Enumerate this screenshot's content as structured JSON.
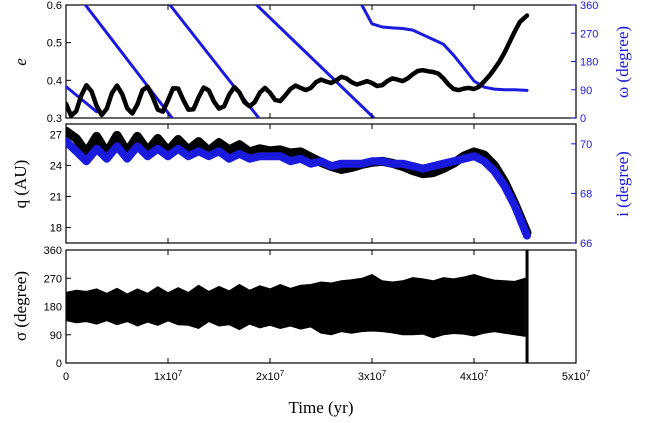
{
  "figure": {
    "xlabel": "Time (yr)"
  },
  "colors": {
    "primary": "#000000",
    "secondary": "#1a1adf"
  },
  "chart_data": [
    {
      "panel": "top",
      "type": "line",
      "xlabel": "",
      "xlim": [
        0,
        50000000
      ],
      "x_ticks": [
        "0",
        "1x10^7",
        "2x10^7",
        "3x10^7",
        "4x10^7",
        "5x10^7"
      ],
      "ylabel": "e",
      "ylim": [
        0.3,
        0.6
      ],
      "y_ticks": [
        "0.3",
        "0.4",
        "0.5",
        "0.6"
      ],
      "y2label": "ω (degree)",
      "y2lim": [
        0,
        360
      ],
      "y2_ticks": [
        "0",
        "90",
        "180",
        "270",
        "360"
      ],
      "series": [
        {
          "axis": "left",
          "color": "#000000",
          "x": [
            0,
            500000,
            1000000,
            1500000,
            2000000,
            2500000,
            3000000,
            3500000,
            4000000,
            4500000,
            5000000,
            5500000,
            6000000,
            6500000,
            7000000,
            7500000,
            8000000,
            8500000,
            9000000,
            9500000,
            10000000,
            10500000,
            11000000,
            11500000,
            12000000,
            12500000,
            13000000,
            13500000,
            14000000,
            14500000,
            15000000,
            15500000,
            16000000,
            16500000,
            17000000,
            17500000,
            18000000,
            18500000,
            19000000,
            19500000,
            20000000,
            20500000,
            21000000,
            21500000,
            22000000,
            22500000,
            23000000,
            23500000,
            24000000,
            24500000,
            25000000,
            25500000,
            26000000,
            26500000,
            27000000,
            27500000,
            28000000,
            28500000,
            29000000,
            29500000,
            30000000,
            30500000,
            31000000,
            31500000,
            32000000,
            32500000,
            33000000,
            33500000,
            34000000,
            34500000,
            35000000,
            35500000,
            36000000,
            36500000,
            37000000,
            37500000,
            38000000,
            38500000,
            39000000,
            39500000,
            40000000,
            40500000,
            41000000,
            41500000,
            42000000,
            42500000,
            43000000,
            43500000,
            44000000,
            44500000,
            45200000
          ],
          "y": [
            0.338,
            0.306,
            0.318,
            0.36,
            0.387,
            0.371,
            0.332,
            0.308,
            0.325,
            0.366,
            0.386,
            0.364,
            0.326,
            0.312,
            0.336,
            0.374,
            0.383,
            0.356,
            0.322,
            0.317,
            0.347,
            0.379,
            0.378,
            0.348,
            0.322,
            0.323,
            0.355,
            0.381,
            0.373,
            0.344,
            0.325,
            0.331,
            0.362,
            0.382,
            0.368,
            0.342,
            0.331,
            0.342,
            0.367,
            0.38,
            0.367,
            0.348,
            0.345,
            0.36,
            0.377,
            0.386,
            0.38,
            0.374,
            0.38,
            0.395,
            0.402,
            0.397,
            0.393,
            0.4,
            0.409,
            0.405,
            0.395,
            0.389,
            0.393,
            0.398,
            0.393,
            0.385,
            0.387,
            0.398,
            0.405,
            0.402,
            0.398,
            0.405,
            0.416,
            0.425,
            0.427,
            0.424,
            0.422,
            0.418,
            0.405,
            0.389,
            0.377,
            0.374,
            0.378,
            0.38,
            0.377,
            0.383,
            0.397,
            0.412,
            0.43,
            0.45,
            0.474,
            0.502,
            0.53,
            0.555,
            0.572
          ]
        },
        {
          "axis": "right",
          "color": "#1a1adf",
          "segments": [
            {
              "x": [
                0,
                3000000
              ],
              "y": [
                100,
                20
              ]
            },
            {
              "x": [
                1900000,
                10400000
              ],
              "y": [
                360,
                0
              ]
            },
            {
              "x": [
                10200000,
                18900000
              ],
              "y": [
                360,
                0
              ]
            },
            {
              "x": [
                18700000,
                30200000
              ],
              "y": [
                360,
                0
              ]
            },
            {
              "x": [
                29000000,
                30000000,
                31000000,
                32000000,
                33000000,
                34000000,
                35000000,
                36000000,
                37000000,
                38000000,
                39000000,
                40000000,
                41000000,
                42000000,
                43000000,
                44000000,
                45200000
              ],
              "y": [
                360,
                300,
                290,
                287,
                285,
                280,
                265,
                250,
                235,
                200,
                160,
                118,
                98,
                92,
                90,
                90,
                88
              ]
            }
          ]
        }
      ]
    },
    {
      "panel": "middle",
      "type": "line",
      "xlabel": "",
      "xlim": [
        0,
        50000000
      ],
      "ylabel": "q (AU)",
      "ylim": [
        16.5,
        28
      ],
      "y_ticks": [
        "18",
        "21",
        "24",
        "27"
      ],
      "y2label": "i (degree)",
      "y2lim": [
        66,
        70.8
      ],
      "y2_ticks": [
        "66",
        "68",
        "70"
      ],
      "series": [
        {
          "axis": "left",
          "color": "#000000",
          "x": [
            0,
            1000000,
            2000000,
            3000000,
            4000000,
            5000000,
            6000000,
            7000000,
            8000000,
            9000000,
            10000000,
            11000000,
            12000000,
            13000000,
            14000000,
            15000000,
            16000000,
            17000000,
            18000000,
            19000000,
            20000000,
            21000000,
            22000000,
            23000000,
            24000000,
            25000000,
            26000000,
            27000000,
            28000000,
            29000000,
            30000000,
            31000000,
            32000000,
            33000000,
            34000000,
            35000000,
            36000000,
            37000000,
            38000000,
            39000000,
            40000000,
            41000000,
            42000000,
            43000000,
            44000000,
            45200000
          ],
          "y": [
            27.3,
            26.6,
            25.2,
            26.8,
            25.2,
            26.9,
            25.3,
            26.8,
            25.4,
            26.6,
            25.4,
            26.5,
            25.5,
            26.3,
            25.4,
            26.2,
            25.5,
            26.0,
            25.3,
            25.6,
            25.4,
            25.5,
            25.2,
            25.3,
            24.8,
            24.3,
            23.9,
            23.6,
            23.8,
            24.1,
            24.3,
            24.4,
            24.2,
            23.9,
            23.5,
            23.2,
            23.3,
            23.7,
            24.2,
            24.9,
            25.3,
            25.0,
            24.0,
            22.4,
            20.3,
            17.5
          ]
        },
        {
          "axis": "right",
          "color": "#1a1adf",
          "x": [
            0,
            1000000,
            2000000,
            3000000,
            4000000,
            5000000,
            6000000,
            7000000,
            8000000,
            9000000,
            10000000,
            11000000,
            12000000,
            13000000,
            14000000,
            15000000,
            16000000,
            17000000,
            18000000,
            19000000,
            20000000,
            21000000,
            22000000,
            23000000,
            24000000,
            25000000,
            26000000,
            27000000,
            28000000,
            29000000,
            30000000,
            31000000,
            32000000,
            33000000,
            34000000,
            35000000,
            36000000,
            37000000,
            38000000,
            39000000,
            40000000,
            41000000,
            42000000,
            43000000,
            44000000,
            45200000
          ],
          "y": [
            70.1,
            69.7,
            69.3,
            69.8,
            69.4,
            69.9,
            69.4,
            69.9,
            69.5,
            69.8,
            69.5,
            69.8,
            69.5,
            69.7,
            69.5,
            69.7,
            69.4,
            69.6,
            69.4,
            69.5,
            69.5,
            69.5,
            69.3,
            69.4,
            69.2,
            69.3,
            69.1,
            69.2,
            69.2,
            69.2,
            69.3,
            69.3,
            69.2,
            69.2,
            69.1,
            69.0,
            69.1,
            69.2,
            69.3,
            69.4,
            69.5,
            69.3,
            68.9,
            68.3,
            67.5,
            66.3
          ]
        }
      ]
    },
    {
      "panel": "bottom",
      "type": "area",
      "xlabel": "Time (yr)",
      "xlim": [
        0,
        50000000
      ],
      "x_ticks": [
        "0",
        "1x10^7",
        "2x10^7",
        "3x10^7",
        "4x10^7",
        "5x10^7"
      ],
      "ylabel": "σ (degree)",
      "ylim": [
        0,
        360
      ],
      "y_ticks": [
        "0",
        "90",
        "180",
        "270",
        "360"
      ],
      "series": [
        {
          "color": "#000000",
          "x": [
            0,
            1000000,
            2000000,
            3000000,
            4000000,
            5000000,
            6000000,
            7000000,
            8000000,
            9000000,
            10000000,
            11000000,
            12000000,
            13000000,
            14000000,
            15000000,
            16000000,
            17000000,
            18000000,
            19000000,
            20000000,
            21000000,
            22000000,
            23000000,
            24000000,
            25000000,
            26000000,
            27000000,
            28000000,
            29000000,
            30000000,
            31000000,
            32000000,
            33000000,
            34000000,
            35000000,
            36000000,
            37000000,
            38000000,
            39000000,
            40000000,
            41000000,
            42000000,
            43000000,
            44000000,
            45000000
          ],
          "y_upper": [
            225,
            232,
            228,
            236,
            222,
            238,
            220,
            236,
            222,
            243,
            224,
            240,
            225,
            248,
            228,
            244,
            230,
            250,
            232,
            246,
            236,
            250,
            238,
            248,
            250,
            258,
            255,
            262,
            265,
            270,
            282,
            262,
            258,
            262,
            272,
            268,
            262,
            272,
            268,
            274,
            282,
            272,
            264,
            262,
            260,
            270
          ],
          "y_lower": [
            135,
            128,
            132,
            124,
            135,
            122,
            132,
            118,
            130,
            120,
            134,
            122,
            120,
            110,
            132,
            118,
            122,
            106,
            124,
            112,
            120,
            110,
            118,
            108,
            115,
            95,
            90,
            100,
            95,
            100,
            102,
            100,
            96,
            90,
            90,
            92,
            80,
            90,
            94,
            92,
            86,
            95,
            100,
            95,
            90,
            85
          ]
        }
      ],
      "annotations": [
        {
          "type": "vertical-spike",
          "x": 45200000,
          "y_from": 0,
          "y_to": 360
        }
      ]
    }
  ]
}
